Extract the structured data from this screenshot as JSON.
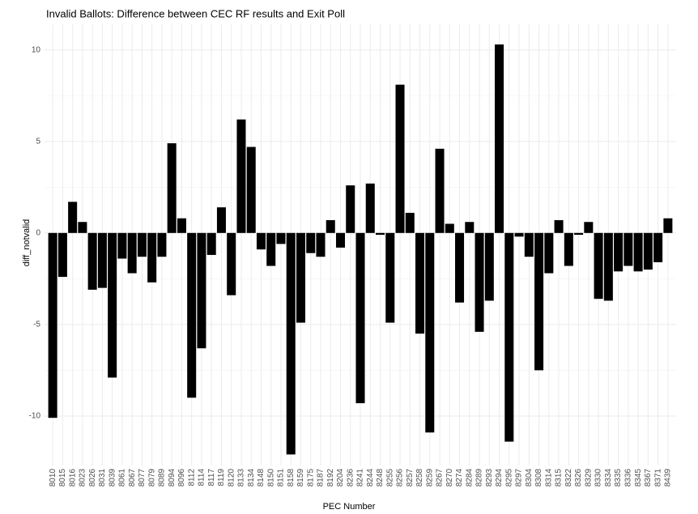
{
  "chart_data": {
    "type": "bar",
    "title": "Invalid Ballots: Difference between CEC RF results and Exit Poll",
    "x_label": "PEC Number",
    "y_label": "diff_notvalid",
    "categories": [
      "8010",
      "8015",
      "8016",
      "8023",
      "8026",
      "8031",
      "8039",
      "8061",
      "8067",
      "8077",
      "8079",
      "8089",
      "8094",
      "8096",
      "8112",
      "8114",
      "8117",
      "8119",
      "8120",
      "8133",
      "8134",
      "8148",
      "8150",
      "8151",
      "8158",
      "8159",
      "8175",
      "8187",
      "8192",
      "8204",
      "8236",
      "8241",
      "8244",
      "8248",
      "8255",
      "8256",
      "8257",
      "8258",
      "8259",
      "8267",
      "8270",
      "8274",
      "8284",
      "8289",
      "8293",
      "8294",
      "8295",
      "8297",
      "8304",
      "8308",
      "8314",
      "8315",
      "8322",
      "8326",
      "8329",
      "8330",
      "8334",
      "8335",
      "8336",
      "8345",
      "8367",
      "8371",
      "8439"
    ],
    "values": [
      -10.1,
      -2.4,
      1.7,
      0.6,
      -3.1,
      -3.0,
      -7.9,
      -1.4,
      -2.2,
      -1.3,
      -2.7,
      -1.3,
      4.9,
      0.8,
      -9.0,
      -6.3,
      -1.2,
      1.4,
      -3.4,
      6.2,
      4.7,
      -0.9,
      -1.8,
      -0.6,
      -12.1,
      -4.9,
      -1.1,
      -1.3,
      0.7,
      -0.8,
      2.6,
      -9.3,
      2.7,
      -0.1,
      -4.9,
      8.1,
      1.1,
      -5.5,
      -10.9,
      4.6,
      0.5,
      -3.8,
      0.6,
      -5.4,
      -3.7,
      10.3,
      -11.4,
      -0.2,
      -1.3,
      -7.5,
      -2.2,
      0.7,
      -1.8,
      -0.1,
      0.6,
      -3.6,
      -3.7,
      -2.1,
      -1.8,
      -2.1,
      -2.0,
      -1.6,
      0.8
    ],
    "color": "#000000",
    "ylim": [
      -12.7,
      11.4
    ],
    "yticks": [
      -10,
      -5,
      0,
      5,
      10
    ],
    "grid": true
  }
}
